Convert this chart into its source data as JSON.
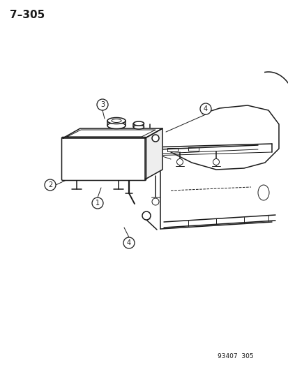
{
  "title": "7–305",
  "part_number": "93407  305",
  "background_color": "#ffffff",
  "line_color": "#1a1a1a",
  "fig_width": 4.14,
  "fig_height": 5.33,
  "dpi": 100,
  "title_fontsize": 11,
  "callout_r": 8,
  "callout_lw": 0.9,
  "main_lw": 1.1,
  "thin_lw": 0.7
}
